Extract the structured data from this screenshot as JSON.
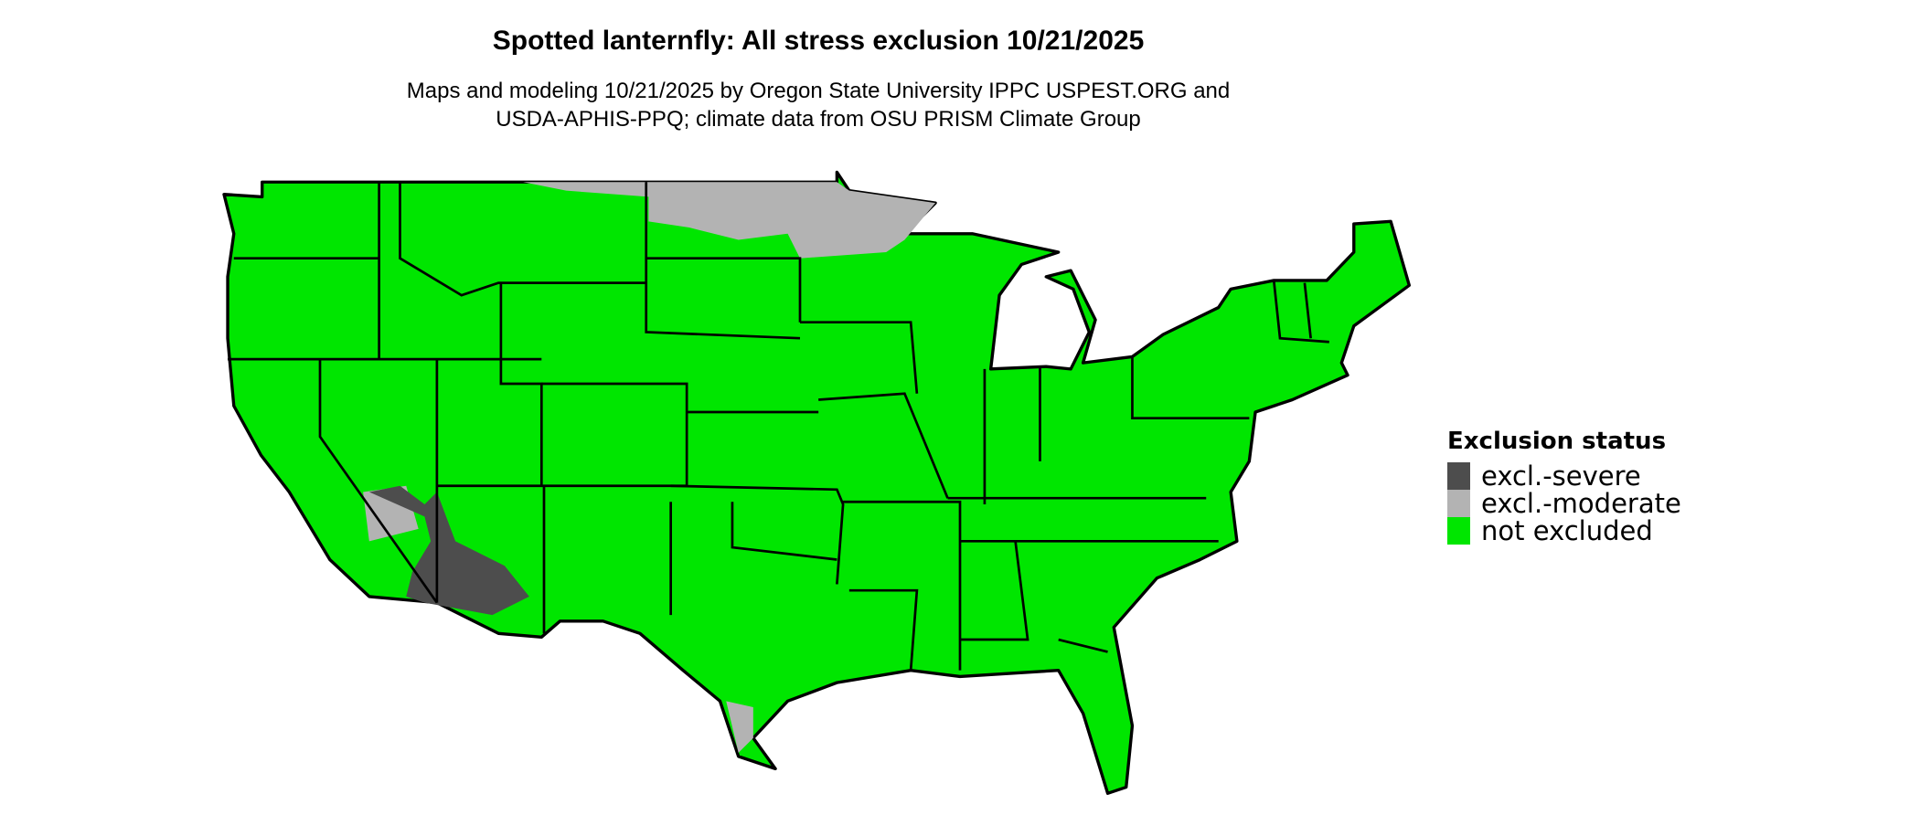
{
  "title": "Spotted lanternfly: All stress exclusion 10/21/2025",
  "subtitle_line1": "Maps and modeling 10/21/2025 by Oregon State University IPPC USPEST.ORG and",
  "subtitle_line2": "USDA-APHIS-PPQ; climate data from OSU PRISM Climate Group",
  "map": {
    "region": "Contiguous United States",
    "background_color": "#00e600",
    "border_color": "#000000"
  },
  "legend": {
    "title": "Exclusion status",
    "items": [
      {
        "label": "excl.-severe",
        "color": "#4d4d4d"
      },
      {
        "label": "excl.-moderate",
        "color": "#b3b3b3"
      },
      {
        "label": "not excluded",
        "color": "#00e600"
      }
    ]
  }
}
